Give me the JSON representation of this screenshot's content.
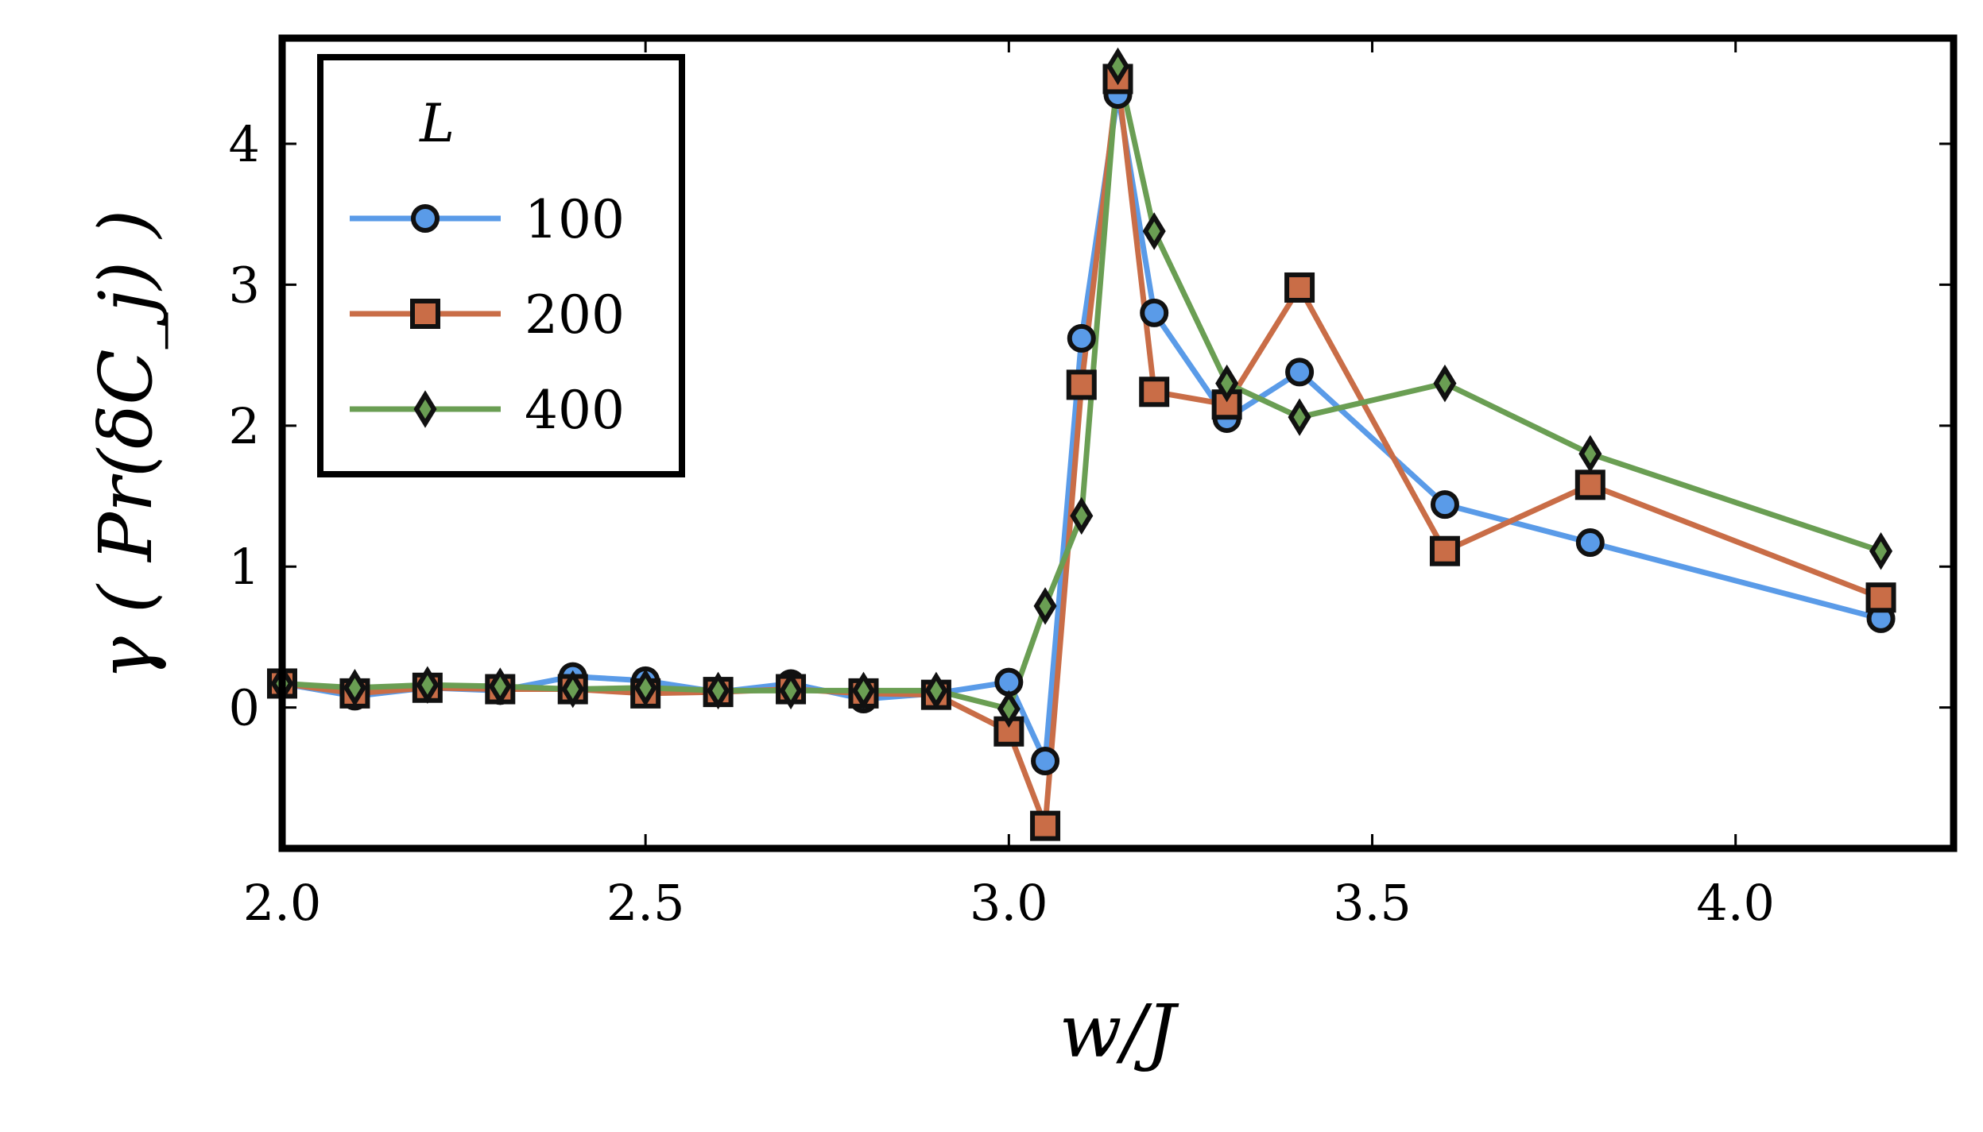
{
  "chart_data": {
    "type": "line",
    "title": "",
    "xlabel": "w/J",
    "ylabel": "γ ( Pr(δC_j) )",
    "xlim": [
      2.0,
      4.3
    ],
    "ylim": [
      -1.0,
      4.75
    ],
    "xticks": [
      2.0,
      2.5,
      3.0,
      3.5,
      4.0
    ],
    "xtick_labels": [
      "2.0",
      "2.5",
      "3.0",
      "3.5",
      "4.0"
    ],
    "yticks": [
      0,
      1,
      2,
      3,
      4
    ],
    "ytick_labels": [
      "0",
      "1",
      "2",
      "3",
      "4"
    ],
    "grid": false,
    "legend": {
      "title": "L",
      "position": "top-left"
    },
    "series": [
      {
        "name": "100",
        "color": "#5a9be8",
        "marker": "circle",
        "x": [
          2.0,
          2.1,
          2.2,
          2.3,
          2.4,
          2.5,
          2.6,
          2.7,
          2.8,
          2.9,
          3.0,
          3.05,
          3.1,
          3.15,
          3.2,
          3.3,
          3.4,
          3.6,
          3.8,
          4.2
        ],
        "y": [
          0.17,
          0.08,
          0.14,
          0.12,
          0.22,
          0.19,
          0.11,
          0.17,
          0.06,
          0.1,
          0.18,
          -0.38,
          2.62,
          4.35,
          2.8,
          2.05,
          2.38,
          1.44,
          1.17,
          0.63
        ]
      },
      {
        "name": "200",
        "color": "#c96d47",
        "marker": "square",
        "x": [
          2.0,
          2.1,
          2.2,
          2.3,
          2.4,
          2.5,
          2.6,
          2.7,
          2.8,
          2.9,
          3.0,
          3.05,
          3.1,
          3.15,
          3.2,
          3.3,
          3.4,
          3.6,
          3.8,
          4.2
        ],
        "y": [
          0.17,
          0.1,
          0.14,
          0.13,
          0.13,
          0.1,
          0.11,
          0.13,
          0.1,
          0.09,
          -0.17,
          -0.84,
          2.29,
          4.46,
          2.24,
          2.15,
          2.98,
          1.11,
          1.58,
          0.78
        ]
      },
      {
        "name": "400",
        "color": "#6a9e53",
        "marker": "diamond",
        "x": [
          2.0,
          2.1,
          2.2,
          2.3,
          2.4,
          2.5,
          2.6,
          2.7,
          2.8,
          2.9,
          3.0,
          3.05,
          3.1,
          3.15,
          3.2,
          3.3,
          3.4,
          3.6,
          3.8,
          4.2
        ],
        "y": [
          0.17,
          0.14,
          0.16,
          0.15,
          0.13,
          0.14,
          0.12,
          0.12,
          0.12,
          0.12,
          -0.01,
          0.72,
          1.36,
          4.55,
          3.38,
          2.3,
          2.06,
          2.3,
          1.8,
          1.11
        ]
      }
    ]
  }
}
